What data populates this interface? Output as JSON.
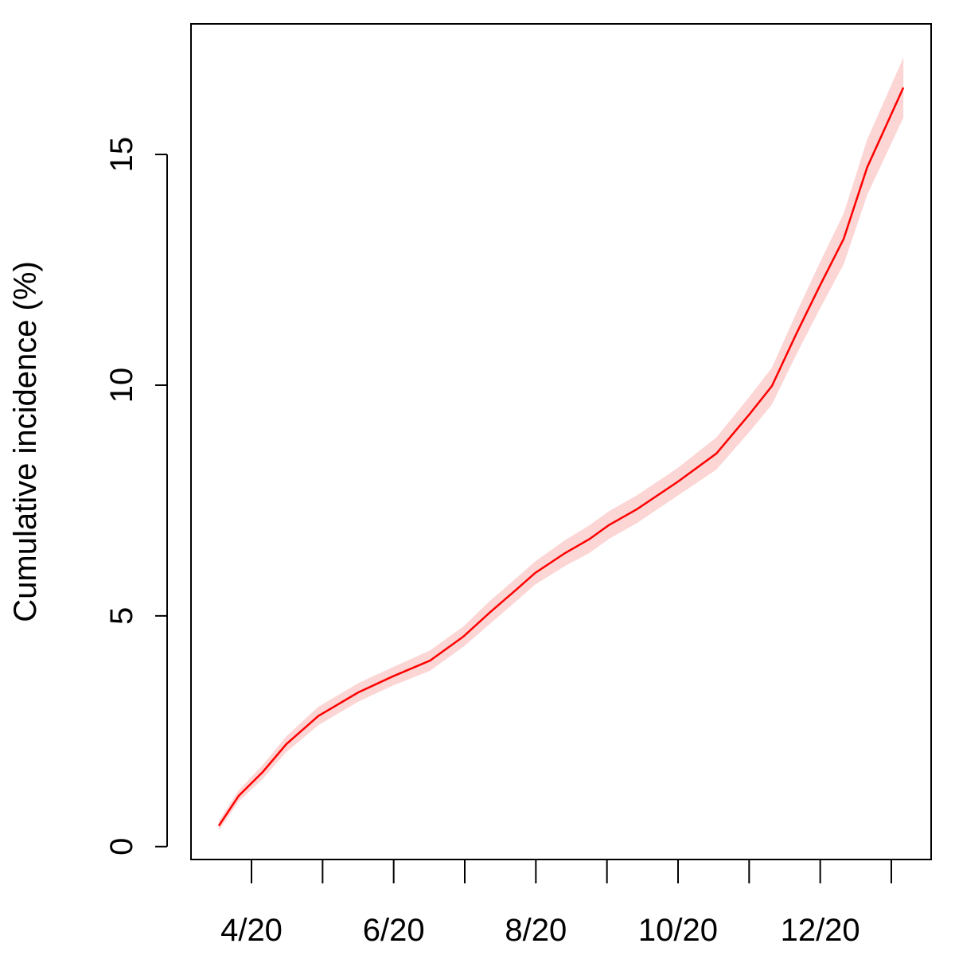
{
  "chart_data": {
    "type": "line",
    "y_label": "Cumulative incidence (%)",
    "x": [
      3.54,
      3.82,
      4.16,
      4.49,
      4.94,
      5.5,
      5.99,
      6.51,
      6.98,
      7.35,
      7.74,
      7.99,
      8.41,
      8.75,
      9.03,
      9.42,
      10.0,
      10.54,
      11.01,
      11.32,
      11.66,
      11.99,
      12.33,
      12.66,
      13.17
    ],
    "series": [
      {
        "color": "#ff0000",
        "values": [
          0.45,
          1.1,
          1.62,
          2.22,
          2.83,
          3.34,
          3.69,
          4.03,
          4.55,
          5.07,
          5.59,
          5.93,
          6.36,
          6.66,
          6.97,
          7.31,
          7.91,
          8.52,
          9.38,
          9.98,
          11.1,
          12.14,
          13.17,
          14.72,
          16.45
        ]
      }
    ],
    "band": {
      "color": "#fcd5d5",
      "lower": [
        0.35,
        0.98,
        1.47,
        2.05,
        2.63,
        3.14,
        3.49,
        3.81,
        4.33,
        4.82,
        5.34,
        5.68,
        6.08,
        6.36,
        6.67,
        7.01,
        7.61,
        8.17,
        9.0,
        9.58,
        10.65,
        11.64,
        12.62,
        14.12,
        15.8
      ],
      "upper": [
        0.55,
        1.22,
        1.77,
        2.39,
        3.03,
        3.54,
        3.89,
        4.25,
        4.77,
        5.32,
        5.84,
        6.18,
        6.64,
        6.96,
        7.27,
        7.61,
        8.21,
        8.87,
        9.76,
        10.38,
        11.55,
        12.64,
        13.72,
        15.32,
        17.1
      ]
    },
    "xlim": [
      3.149,
      13.56
    ],
    "xticks": [
      {
        "value": 4,
        "label": "4/20"
      },
      {
        "value": 5,
        "label": null
      },
      {
        "value": 6,
        "label": "6/20"
      },
      {
        "value": 7,
        "label": null
      },
      {
        "value": 8,
        "label": "8/20"
      },
      {
        "value": 9,
        "label": null
      },
      {
        "value": 10,
        "label": "10/20"
      },
      {
        "value": 11,
        "label": null
      },
      {
        "value": 12,
        "label": "12/20"
      },
      {
        "value": 13,
        "label": null
      }
    ],
    "ylim": [
      -0.28,
      17.83
    ],
    "yticks": [
      0,
      5,
      10,
      15
    ]
  }
}
